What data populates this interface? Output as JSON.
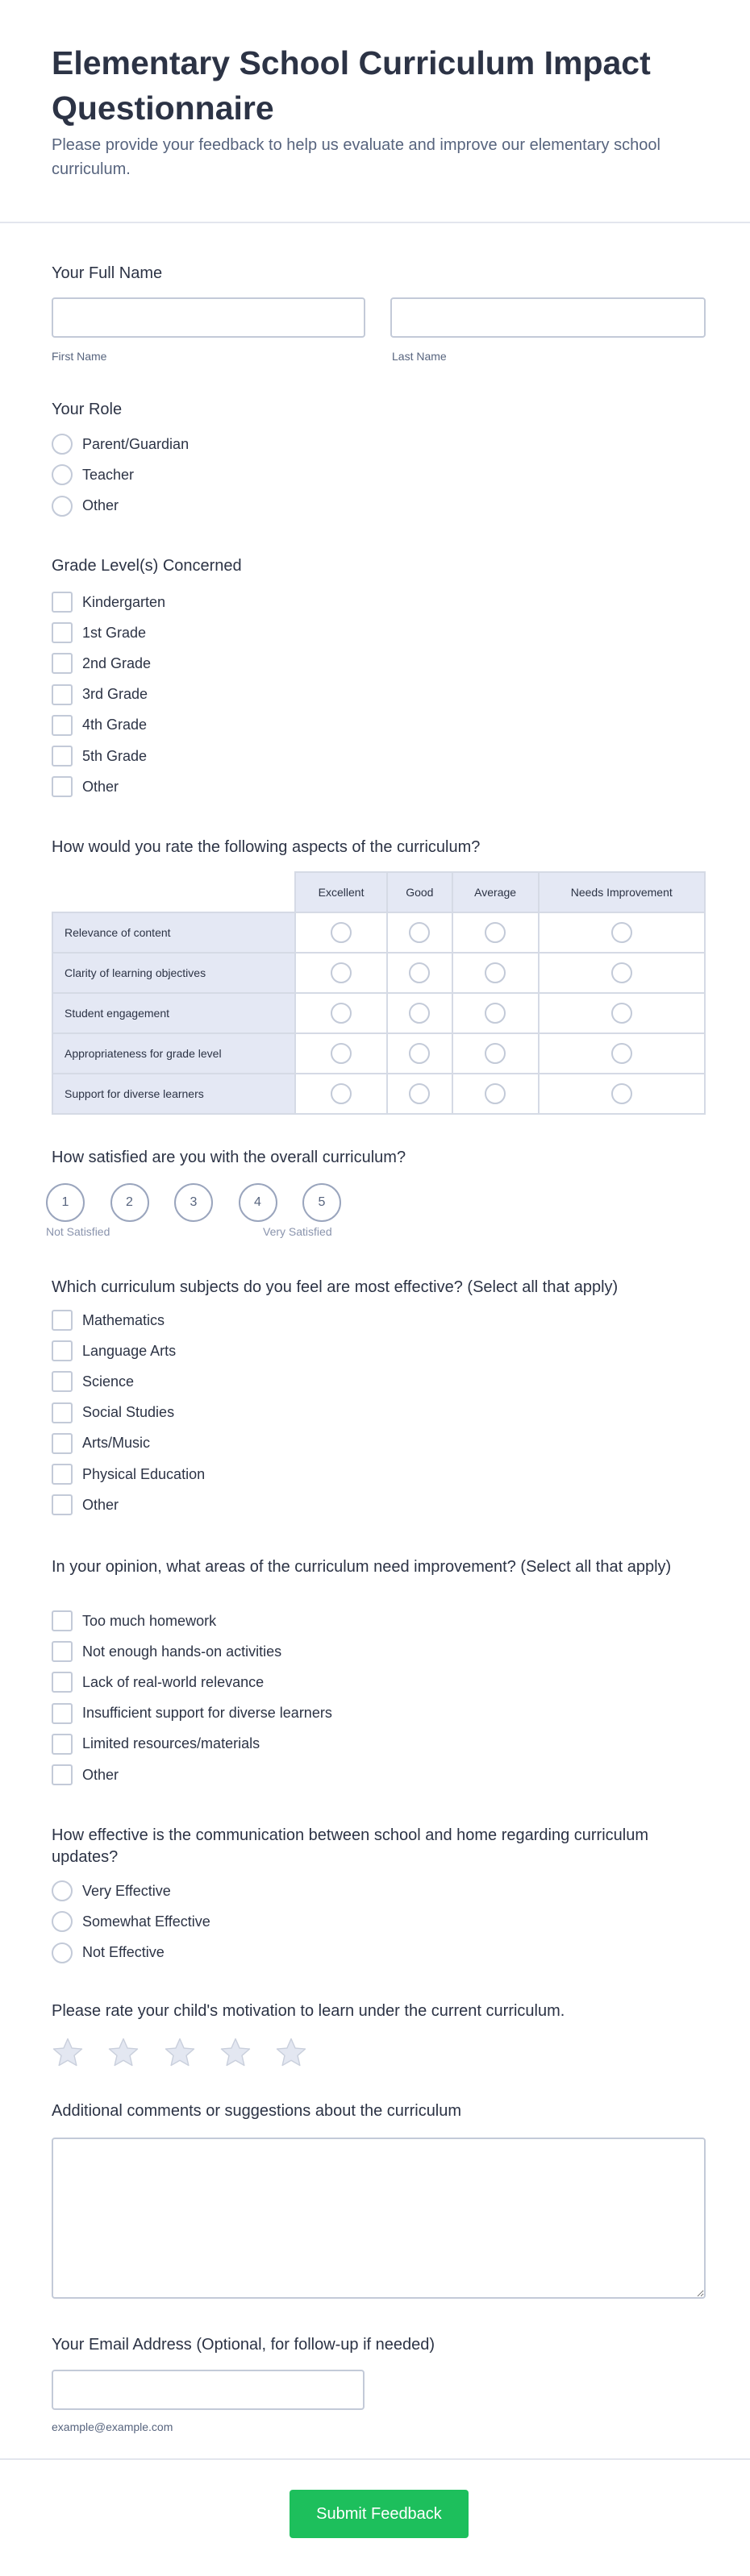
{
  "header": {
    "title": "Elementary School Curriculum Impact Questionnaire",
    "subtitle": "Please provide your feedback to help us evaluate and improve our elementary school curriculum."
  },
  "full_name": {
    "label": "Your Full Name",
    "first_sublabel": "First Name",
    "last_sublabel": "Last Name",
    "first_value": "",
    "last_value": ""
  },
  "role": {
    "label": "Your Role",
    "options": [
      "Parent/Guardian",
      "Teacher",
      "Other"
    ]
  },
  "grades": {
    "label": "Grade Level(s) Concerned",
    "options": [
      "Kindergarten",
      "1st Grade",
      "2nd Grade",
      "3rd Grade",
      "4th Grade",
      "5th Grade",
      "Other"
    ]
  },
  "matrix": {
    "label": "How would you rate the following aspects of the curriculum?",
    "columns": [
      "Excellent",
      "Good",
      "Average",
      "Needs Improvement"
    ],
    "rows": [
      "Relevance of content",
      "Clarity of learning objectives",
      "Student engagement",
      "Appropriateness for grade level",
      "Support for diverse learners"
    ]
  },
  "satisfaction": {
    "label": "How satisfied are you with the overall curriculum?",
    "values": [
      "1",
      "2",
      "3",
      "4",
      "5"
    ],
    "min_label": "Not Satisfied",
    "max_label": "Very Satisfied"
  },
  "subjects": {
    "label": "Which curriculum subjects do you feel are most effective? (Select all that apply)",
    "options": [
      "Mathematics",
      "Language Arts",
      "Science",
      "Social Studies",
      "Arts/Music",
      "Physical Education",
      "Other"
    ]
  },
  "improvement": {
    "label": "In your opinion, what areas of the curriculum need improvement? (Select all that apply)",
    "options": [
      "Too much homework",
      "Not enough hands-on activities",
      "Lack of real-world relevance",
      "Insufficient support for diverse learners",
      "Limited resources/materials",
      "Other"
    ]
  },
  "communication": {
    "label": "How effective is the communication between school and home regarding curriculum updates?",
    "options": [
      "Very Effective",
      "Somewhat Effective",
      "Not Effective"
    ]
  },
  "motivation": {
    "label": "Please rate your child's motivation to learn under the current curriculum.",
    "stars": 5,
    "rating": 0,
    "star_color": "#e3e7f1"
  },
  "comments": {
    "label": "Additional comments or suggestions about the curriculum",
    "value": ""
  },
  "email": {
    "label": "Your Email Address (Optional, for follow-up if needed)",
    "sublabel": "example@example.com",
    "value": ""
  },
  "submit": {
    "label": "Submit Feedback",
    "color": "#1dbf5c"
  }
}
